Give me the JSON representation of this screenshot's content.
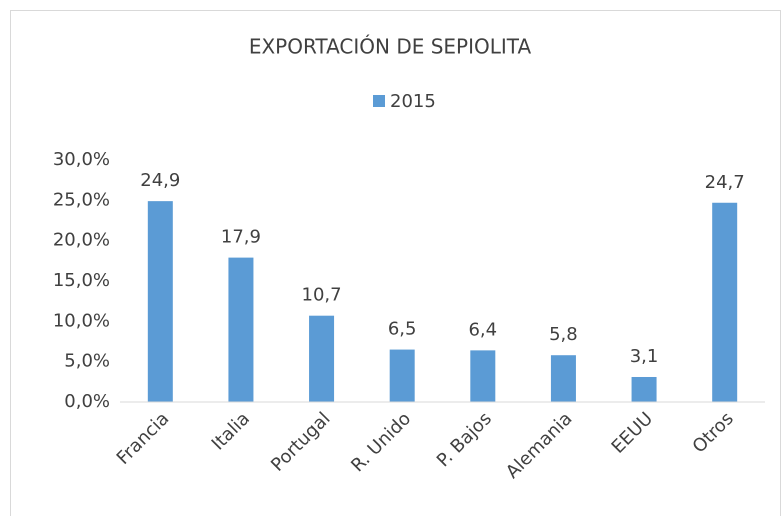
{
  "chart_data": {
    "type": "bar",
    "title": "EXPORTACIÓN DE SEPIOLITA",
    "categories": [
      "Francia",
      "Italia",
      "Portugal",
      "R. Unido",
      "P. Bajos",
      "Alemania",
      "EEUU",
      "Otros"
    ],
    "series": [
      {
        "name": "2015",
        "color": "#5b9bd5",
        "values": [
          24.9,
          17.9,
          10.7,
          6.5,
          6.4,
          5.8,
          3.1,
          24.7
        ],
        "value_labels": [
          "24,9",
          "17,9",
          "10,7",
          "6,5",
          "6,4",
          "5,8",
          "3,1",
          "24,7"
        ]
      }
    ],
    "ylim": [
      0,
      30
    ],
    "yticks": [
      {
        "value": 0,
        "label": "0,0%"
      },
      {
        "value": 5,
        "label": "5,0%"
      },
      {
        "value": 10,
        "label": "10,0%"
      },
      {
        "value": 15,
        "label": "15,0%"
      },
      {
        "value": 20,
        "label": "20,0%"
      },
      {
        "value": 25,
        "label": "25,0%"
      },
      {
        "value": 30,
        "label": "30,0%"
      }
    ],
    "legend": "top",
    "grid": false
  }
}
